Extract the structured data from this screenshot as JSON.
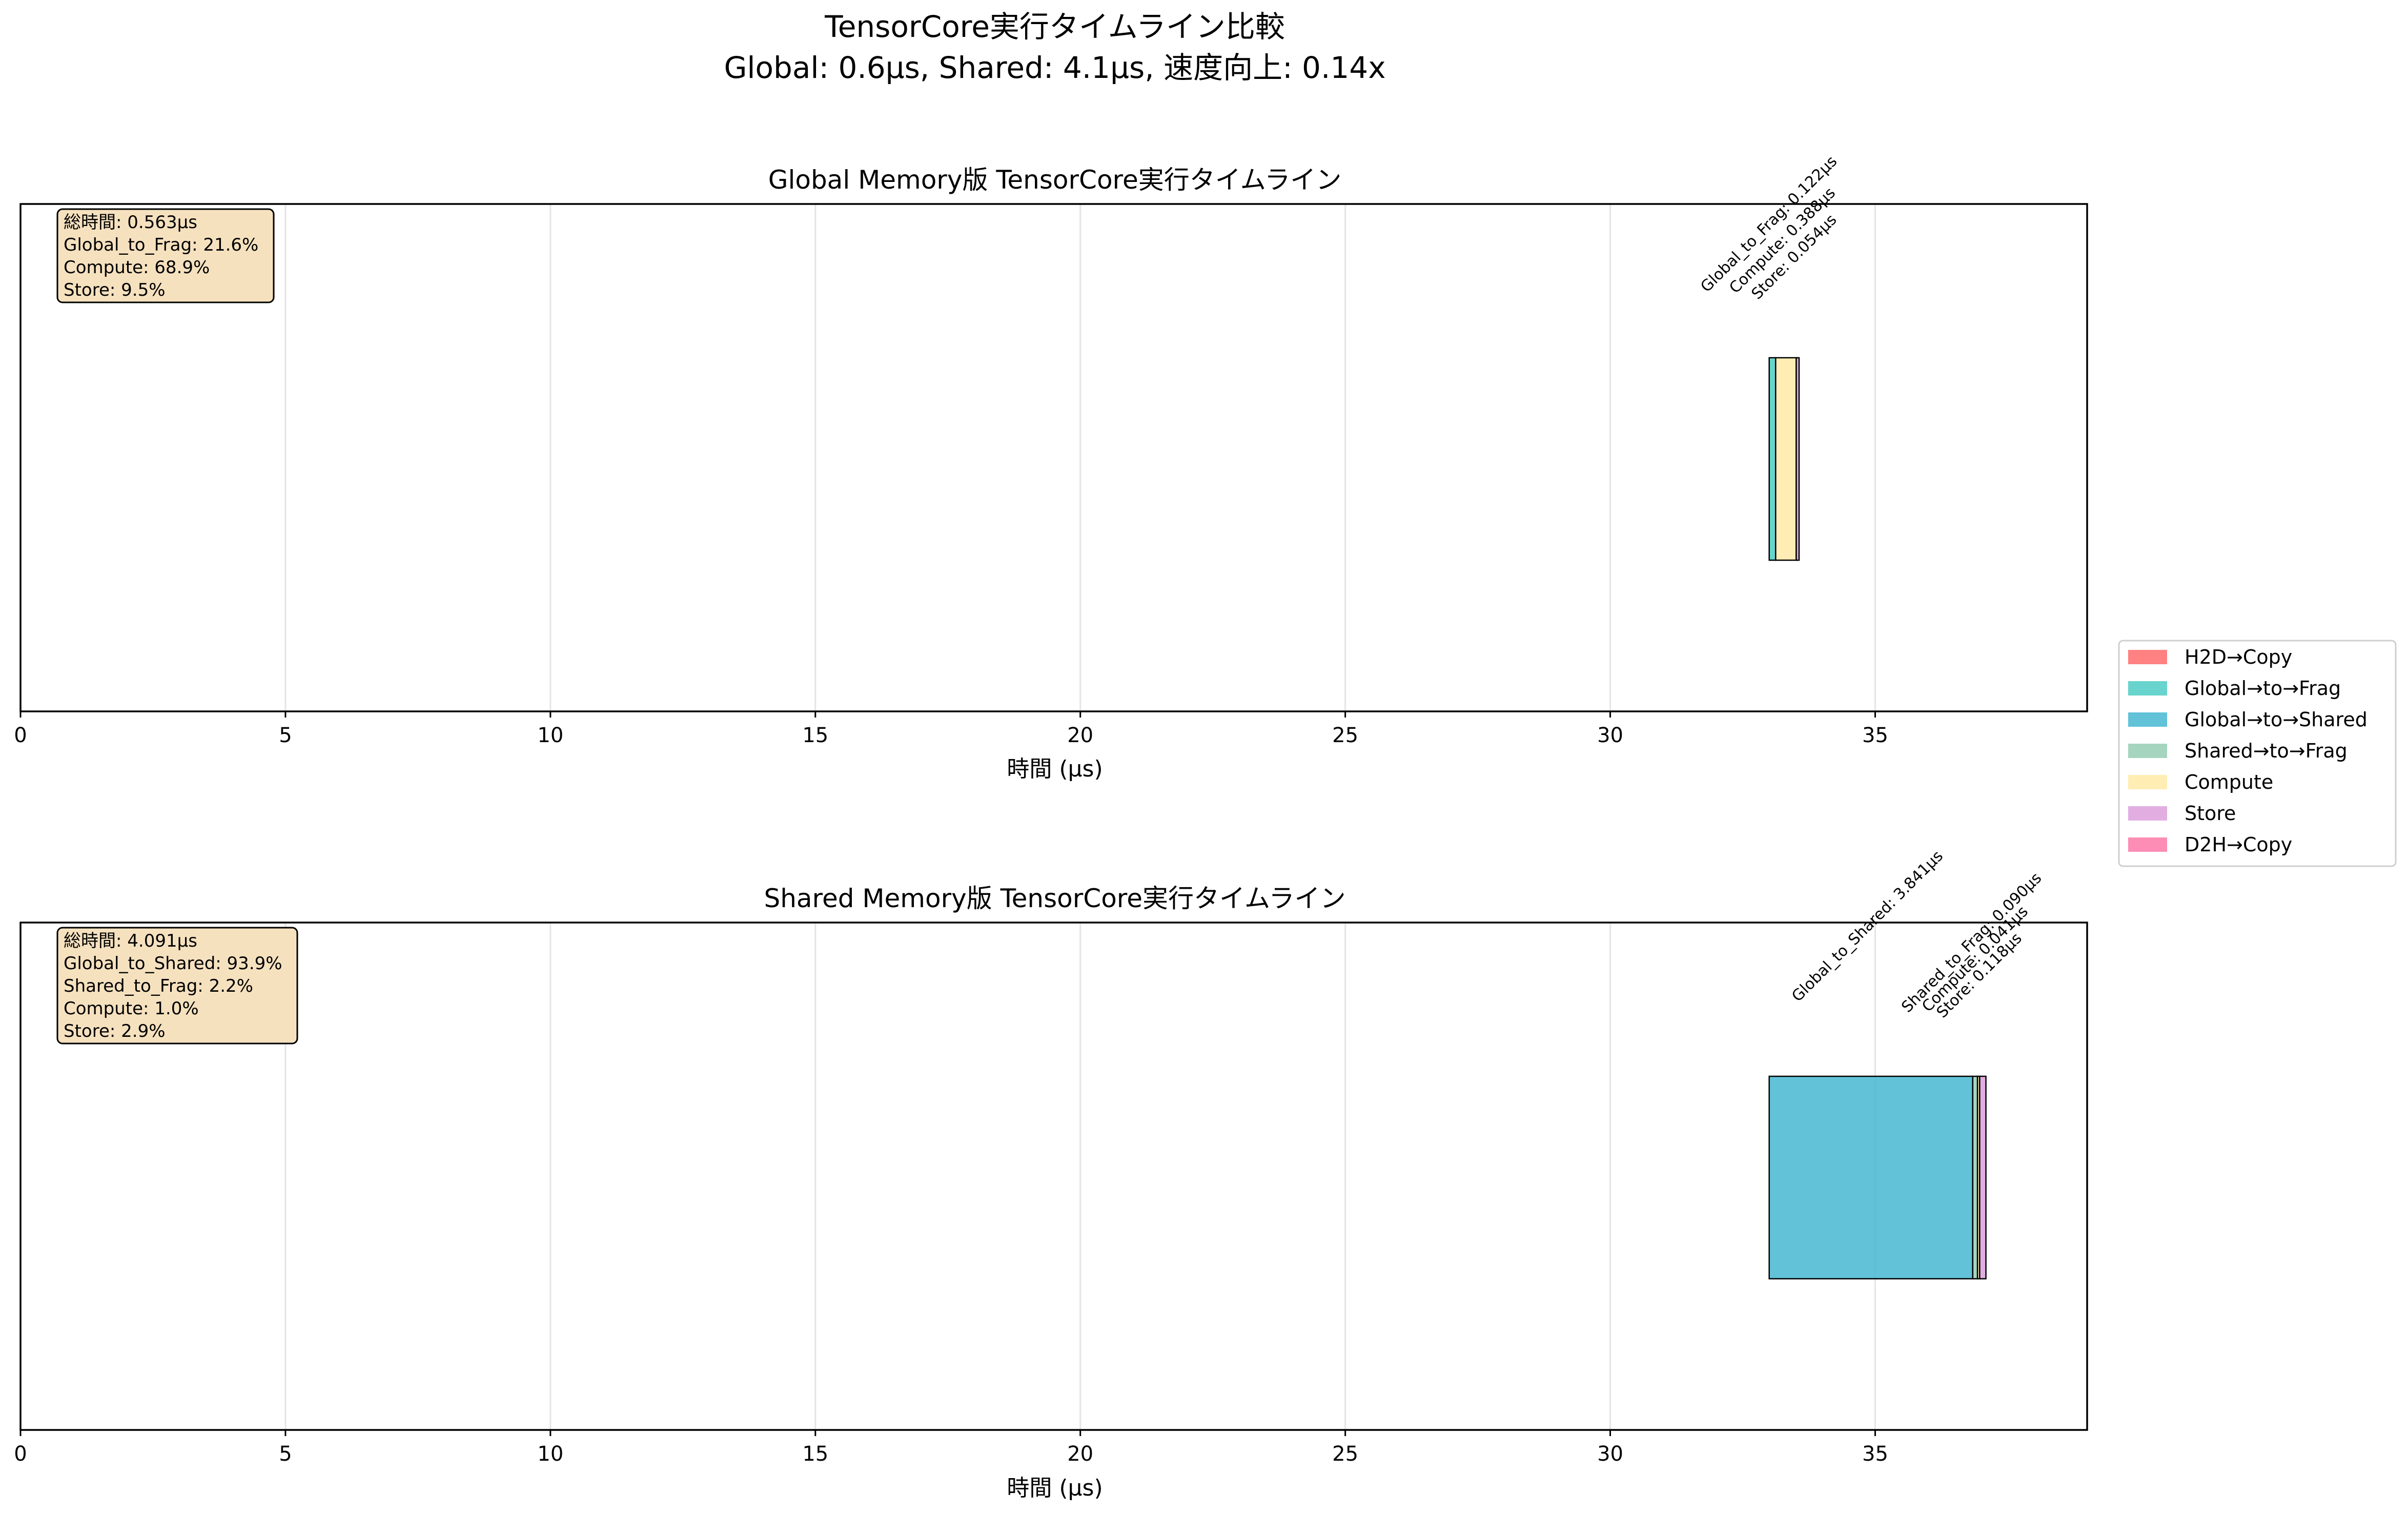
{
  "figure": {
    "title_line1": "TensorCore実行タイムライン比較",
    "title_line2": "Global: 0.6μs, Shared: 4.1μs, 速度向上: 0.14x"
  },
  "colors": {
    "H2D_Copy": "#ff6b6b",
    "Global_to_Frag": "#4ecdc4",
    "Global_to_Shared": "#45b7d1",
    "Shared_to_Frag": "#96ceb4",
    "Compute": "#ffeaa7",
    "Store": "#dda0dd",
    "D2H_Copy": "#fd79a8"
  },
  "legend": [
    {
      "key": "H2D_Copy",
      "label": "H2D→Copy"
    },
    {
      "key": "Global_to_Frag",
      "label": "Global→to→Frag"
    },
    {
      "key": "Global_to_Shared",
      "label": "Global→to→Shared"
    },
    {
      "key": "Shared_to_Frag",
      "label": "Shared→to→Frag"
    },
    {
      "key": "Compute",
      "label": "Compute"
    },
    {
      "key": "Store",
      "label": "Store"
    },
    {
      "key": "D2H_Copy",
      "label": "D2H→Copy"
    }
  ],
  "chart_data": [
    {
      "type": "bar",
      "orientation": "horizontal-timeline",
      "title": "Global Memory版 TensorCore実行タイムライン",
      "xlabel": "時間 (μs)",
      "xlim": [
        0,
        39
      ],
      "xticks": [
        "0",
        "5",
        "10",
        "15",
        "20",
        "25",
        "30",
        "35"
      ],
      "grid": true,
      "stats": [
        "総時間: 0.563μs",
        "Global_to_Frag: 21.6%",
        "Compute: 68.9%",
        "Store: 9.5%"
      ],
      "segments": [
        {
          "phase": "Global_to_Frag",
          "start": 33.0,
          "duration": 0.122,
          "label": "Global_to_Frag: 0.122μs"
        },
        {
          "phase": "Compute",
          "start": 33.122,
          "duration": 0.388,
          "label": "Compute: 0.388μs"
        },
        {
          "phase": "Store",
          "start": 33.51,
          "duration": 0.054,
          "label": "Store: 0.054μs"
        }
      ]
    },
    {
      "type": "bar",
      "orientation": "horizontal-timeline",
      "title": "Shared Memory版 TensorCore実行タイムライン",
      "xlabel": "時間 (μs)",
      "xlim": [
        0,
        39
      ],
      "xticks": [
        "0",
        "5",
        "10",
        "15",
        "20",
        "25",
        "30",
        "35"
      ],
      "grid": true,
      "stats": [
        "総時間: 4.091μs",
        "Global_to_Shared: 93.9%",
        "Shared_to_Frag: 2.2%",
        "Compute: 1.0%",
        "Store: 2.9%"
      ],
      "segments": [
        {
          "phase": "Global_to_Shared",
          "start": 33.0,
          "duration": 3.841,
          "label": "Global_to_Shared: 3.841μs"
        },
        {
          "phase": "Shared_to_Frag",
          "start": 36.841,
          "duration": 0.09,
          "label": "Shared_to_Frag: 0.090μs"
        },
        {
          "phase": "Compute",
          "start": 36.931,
          "duration": 0.041,
          "label": "Compute: 0.041μs"
        },
        {
          "phase": "Store",
          "start": 36.972,
          "duration": 0.118,
          "label": "Store: 0.118μs"
        }
      ]
    }
  ]
}
